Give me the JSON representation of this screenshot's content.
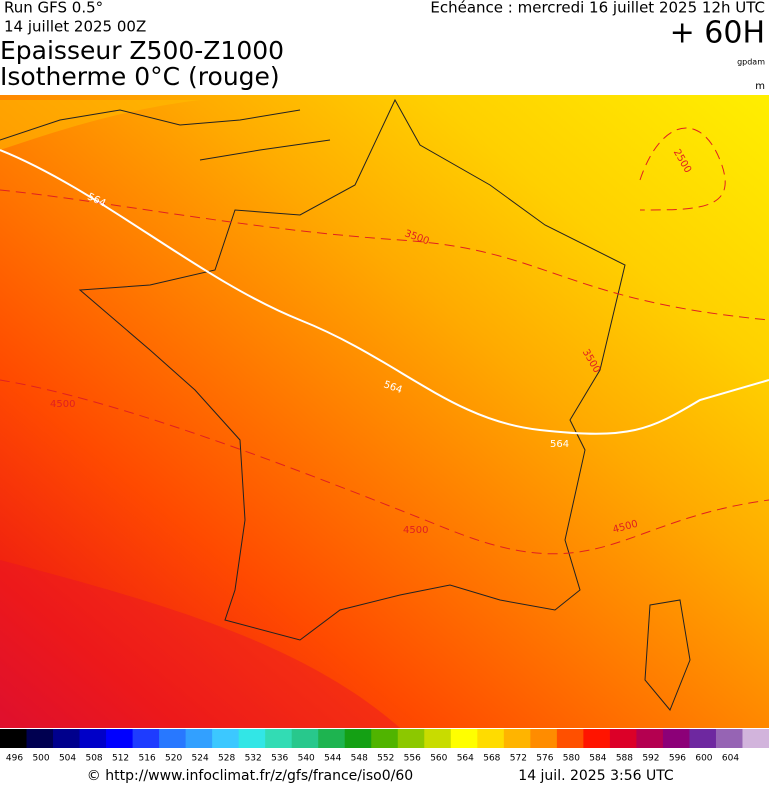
{
  "header": {
    "run": "Run GFS 0.5°",
    "run_date": "14 juillet 2025 00Z",
    "title_1": "Epaisseur Z500-Z1000",
    "title_2": "Isotherme 0°C (rouge)",
    "valid": "Echéance : mercredi 16 juillet 2025 12h UTC",
    "lead": "+ 60H",
    "unit_1": "gpdam",
    "unit_2": "m"
  },
  "map": {
    "contour_labels": [
      "564",
      "564",
      "564",
      "3500",
      "3500",
      "2500",
      "4500",
      "4500",
      "4500"
    ]
  },
  "colorbar": {
    "labels": [
      496,
      500,
      504,
      508,
      512,
      516,
      520,
      524,
      528,
      532,
      536,
      540,
      544,
      548,
      552,
      556,
      560,
      564,
      568,
      572,
      576,
      580,
      584,
      588,
      592,
      596,
      600,
      604
    ],
    "colors": [
      "#000000",
      "#000050",
      "#00008c",
      "#0000c8",
      "#0000ff",
      "#1e3cff",
      "#2878ff",
      "#32a0ff",
      "#3cc8ff",
      "#32e6e6",
      "#32dcb4",
      "#28c88c",
      "#1eb450",
      "#14a014",
      "#50b400",
      "#8cc800",
      "#c8dc00",
      "#ffff00",
      "#ffdc00",
      "#ffb400",
      "#ff8c00",
      "#ff5000",
      "#ff1400",
      "#dc0028",
      "#b40050",
      "#8c0078",
      "#6e28a0",
      "#9664b4",
      "#d2b4dc"
    ]
  },
  "footer": {
    "url": "© http://www.infoclimat.fr/z/gfs/france/iso0/60",
    "timestamp": "14 juil. 2025  3:56 UTC"
  }
}
